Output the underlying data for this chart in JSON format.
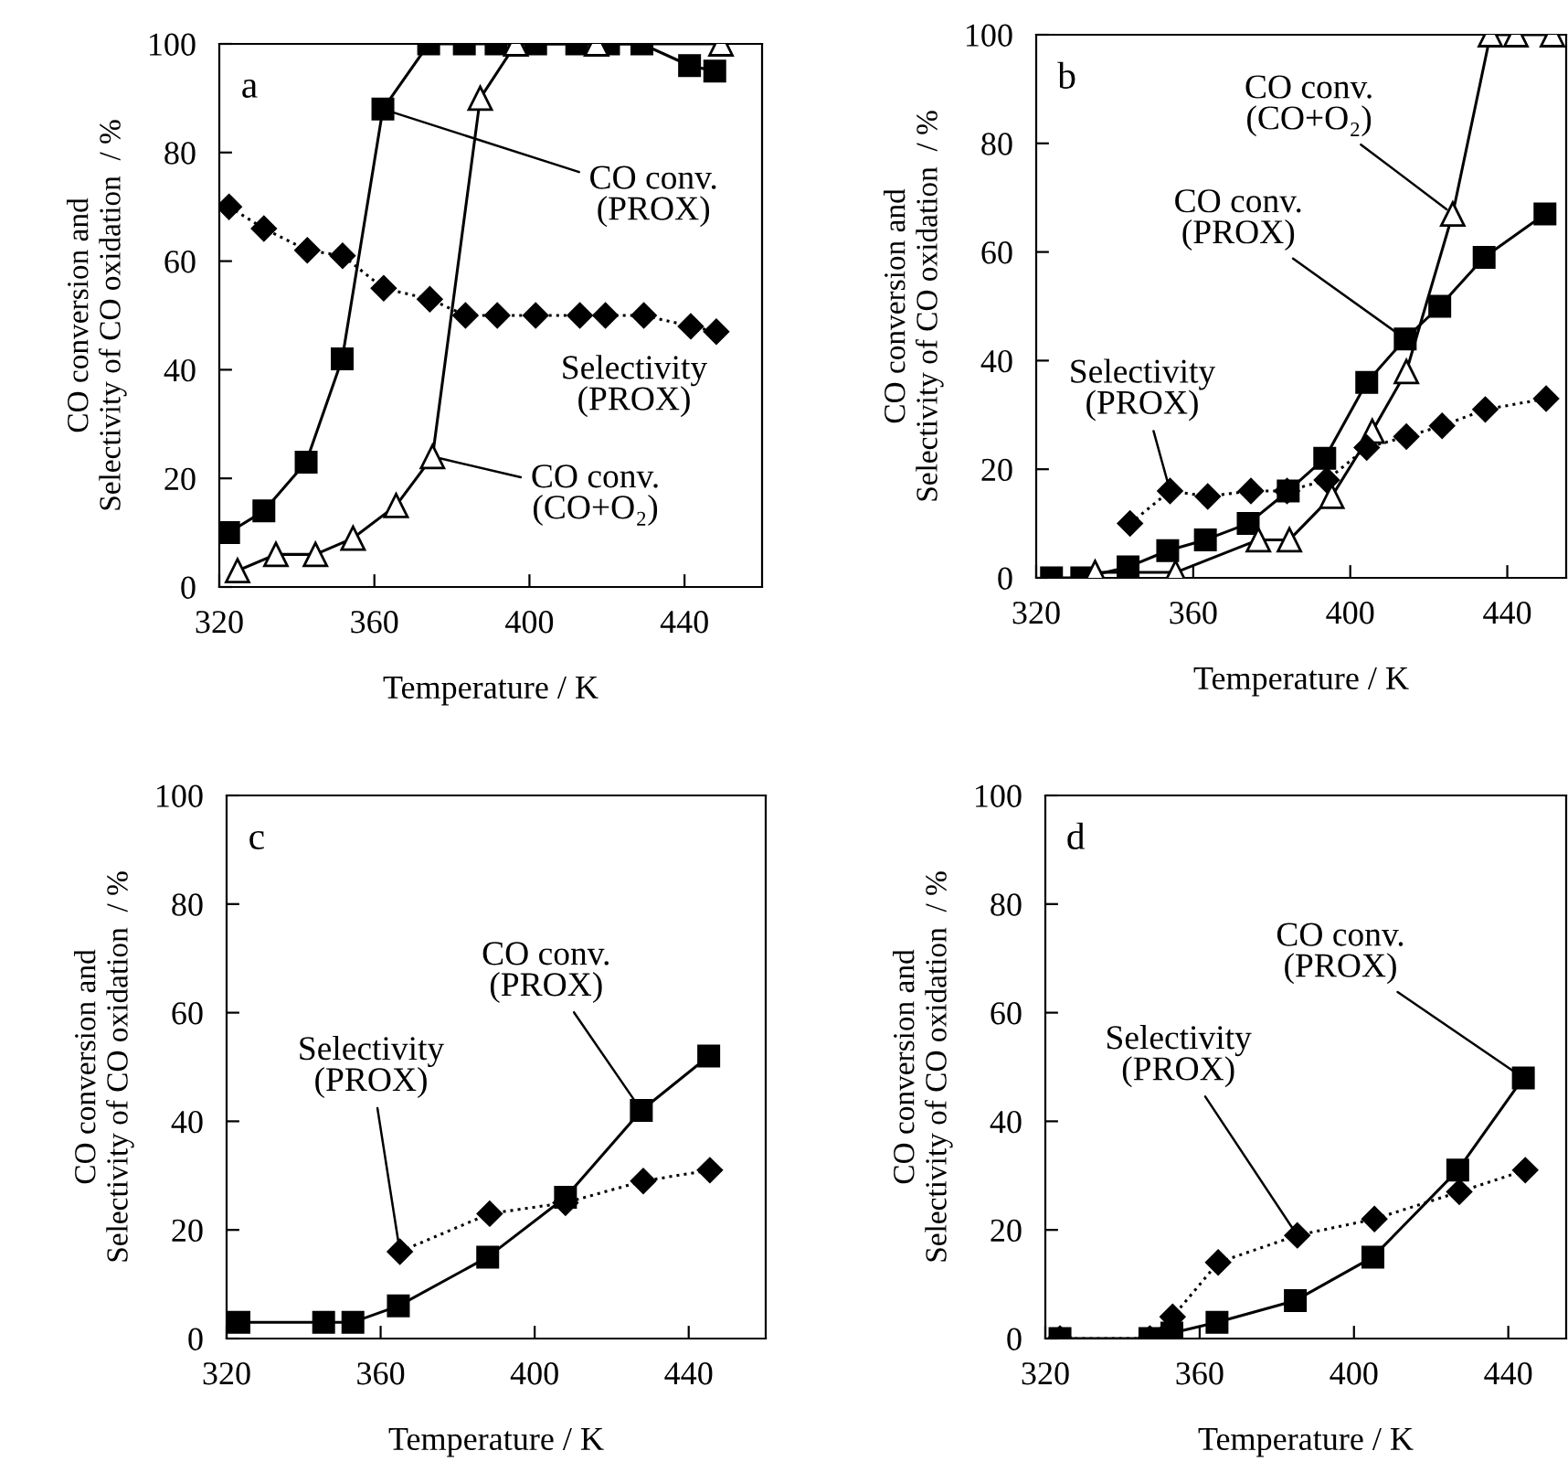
{
  "chart_data": [
    {
      "type": "line",
      "title": "a",
      "xlabel": "Temperature / K",
      "ylabel": "CO conversion and\nSelectivity of CO oxidation  / %",
      "xlim": [
        320,
        460
      ],
      "ylim": [
        0,
        100
      ],
      "xticks": [
        320,
        360,
        400,
        440
      ],
      "yticks": [
        0,
        20,
        40,
        60,
        80,
        100
      ],
      "grid": false,
      "legend": false,
      "series": [
        {
          "color": "#000000",
          "marker": "square",
          "line_style": "solid",
          "x": [
            322.4,
            331.5,
            342.4,
            351.7,
            362.2,
            374,
            383.2,
            391.4,
            401.6,
            412.2,
            420.4,
            429,
            441.3,
            447.8
          ],
          "values": [
            10,
            14,
            23,
            42,
            88,
            100,
            100,
            100,
            100,
            100,
            100,
            100,
            96,
            95
          ]
        },
        {
          "color": "#000000",
          "marker": "triangle",
          "line_style": "solid",
          "x": [
            324.7,
            334.6,
            344.8,
            354.5,
            365.6,
            375,
            387.3,
            396.5,
            417.3,
            449.4
          ],
          "values": [
            3,
            6,
            6,
            9,
            15,
            24,
            90,
            100,
            100,
            100
          ]
        },
        {
          "color": "#000000",
          "marker": "diamond",
          "line_style": "dotted",
          "x": [
            322.5,
            331.5,
            342.7,
            351.8,
            362.4,
            374.3,
            383.5,
            391.7,
            401.6,
            413,
            419.6,
            429.5,
            441.6,
            448.2
          ],
          "values": [
            70,
            66,
            62,
            61,
            55,
            53,
            50,
            50,
            50,
            50,
            50,
            50,
            48,
            47
          ]
        }
      ],
      "annotations": [
        {
          "text": "CO conv.\n(PROX)",
          "x": 362.2,
          "y": 88
        },
        "Selectivity\n(PROX)",
        {
          "text": "CO conv.\n(CO+O₂)",
          "x": 375,
          "y": 24
        }
      ]
    },
    {
      "type": "line",
      "title": "b",
      "xlabel": "Temperature / K",
      "ylabel": "CO conversion and\nSelectivity of CO oxidation  / %",
      "xlim": [
        320,
        455
      ],
      "ylim": [
        0,
        100
      ],
      "xticks": [
        320,
        360,
        400,
        440
      ],
      "yticks": [
        0,
        20,
        40,
        60,
        80,
        100
      ],
      "grid": false,
      "legend": false,
      "series": [
        {
          "color": "#000000",
          "marker": "square",
          "line_style": "solid",
          "x": [
            323.9,
            331.6,
            343.4,
            353.5,
            363.1,
            374,
            384.2,
            393.5,
            404.2,
            414,
            422.8,
            434.1,
            449.6
          ],
          "values": [
            0,
            0,
            2,
            5,
            7,
            10,
            16,
            22,
            36,
            44,
            50,
            59,
            67
          ]
        },
        {
          "color": "#000000",
          "marker": "triangle",
          "line_style": "solid",
          "x": [
            335,
            355.5,
            376.6,
            384.5,
            395.3,
            405.6,
            414.3,
            426.1,
            435.7,
            442.2,
            451.5
          ],
          "values": [
            1,
            1,
            7,
            7,
            15,
            27,
            38,
            67,
            100,
            100,
            100
          ]
        },
        {
          "color": "#000000",
          "marker": "diamond",
          "line_style": "dotted",
          "x": [
            343.9,
            354.1,
            363.7,
            374.7,
            383.9,
            394,
            404.2,
            414.3,
            423.4,
            434.4,
            449.9
          ],
          "values": [
            10,
            16,
            15,
            16,
            16,
            18,
            24,
            26,
            28,
            31,
            33
          ]
        }
      ],
      "annotations": [
        {
          "text": "CO conv.\n(CO+O₂)",
          "x": 426.1,
          "y": 67
        },
        {
          "text": "CO conv.\n(PROX)",
          "x": 414,
          "y": 44
        },
        {
          "text": "Selectivity\n(PROX)",
          "x": 354.1,
          "y": 16
        }
      ]
    },
    {
      "type": "line",
      "title": "c",
      "xlabel": "Temperature / K",
      "ylabel": "CO conversion and\nSelectivity of CO oxidation  / %",
      "xlim": [
        320,
        460
      ],
      "ylim": [
        0,
        100
      ],
      "xticks": [
        320,
        360,
        400,
        440
      ],
      "yticks": [
        0,
        20,
        40,
        60,
        80,
        100
      ],
      "grid": false,
      "legend": false,
      "series": [
        {
          "color": "#000000",
          "marker": "square",
          "line_style": "solid",
          "x": [
            323.2,
            345.2,
            352.8,
            364.6,
            387.8,
            408,
            427.7,
            445.2
          ],
          "values": [
            3,
            3,
            3,
            6,
            15,
            26,
            42,
            52
          ]
        },
        {
          "color": "#000000",
          "marker": "diamond",
          "line_style": "dotted",
          "x": [
            365,
            388.3,
            408,
            428.2,
            445.5
          ],
          "values": [
            16,
            23,
            25,
            29,
            31
          ]
        }
      ],
      "annotations": [
        {
          "text": "CO conv.\n(PROX)",
          "x": 427.7,
          "y": 42
        },
        {
          "text": "Selectivity\n(PROX)",
          "x": 365,
          "y": 16
        }
      ]
    },
    {
      "type": "line",
      "title": "d",
      "xlabel": "Temperature / K",
      "ylabel": "CO conversion and\nSelectivity of CO oxidation  / %",
      "xlim": [
        320,
        455
      ],
      "ylim": [
        0,
        100
      ],
      "xticks": [
        320,
        360,
        400,
        440
      ],
      "yticks": [
        0,
        20,
        40,
        60,
        80,
        100
      ],
      "grid": false,
      "legend": false,
      "series": [
        {
          "color": "#000000",
          "marker": "square",
          "line_style": "solid",
          "x": [
            323.8,
            347.1,
            352.8,
            364.5,
            384.8,
            404.9,
            426.9,
            443.9
          ],
          "values": [
            0,
            0,
            1,
            3,
            7,
            15,
            31,
            48
          ]
        },
        {
          "color": "#000000",
          "marker": "diamond",
          "line_style": "dotted",
          "x": [
            323.8,
            347.1,
            353,
            364.8,
            385.3,
            405.3,
            427.3,
            444.4
          ],
          "values": [
            0,
            0,
            4,
            14,
            19,
            22,
            27,
            31
          ]
        }
      ],
      "annotations": [
        {
          "text": "CO conv.\n(PROX)",
          "x": 443.9,
          "y": 48
        },
        {
          "text": "Selectivity\n(PROX)",
          "x": 385.3,
          "y": 19
        }
      ]
    }
  ]
}
